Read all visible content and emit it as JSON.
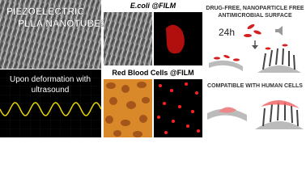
{
  "left_panel": {
    "title_lines": [
      "PIEZOELECTRIC",
      "PLLA NANOTUBES"
    ],
    "caption_lines": [
      "Upon deformation with",
      "ultrasound"
    ]
  },
  "middle_panel": {
    "top_label": "E.coli @FILM",
    "bottom_label": "Red Blood Cells @FILM"
  },
  "right_panel": {
    "title_lines": [
      "DRUG-FREE, NANOPARTICLE FREE",
      "ANTIMICROBIAL SURFACE"
    ],
    "time_label": "24h",
    "bottom_title": "COMPATIBLE WITH HUMAN CELLS"
  }
}
